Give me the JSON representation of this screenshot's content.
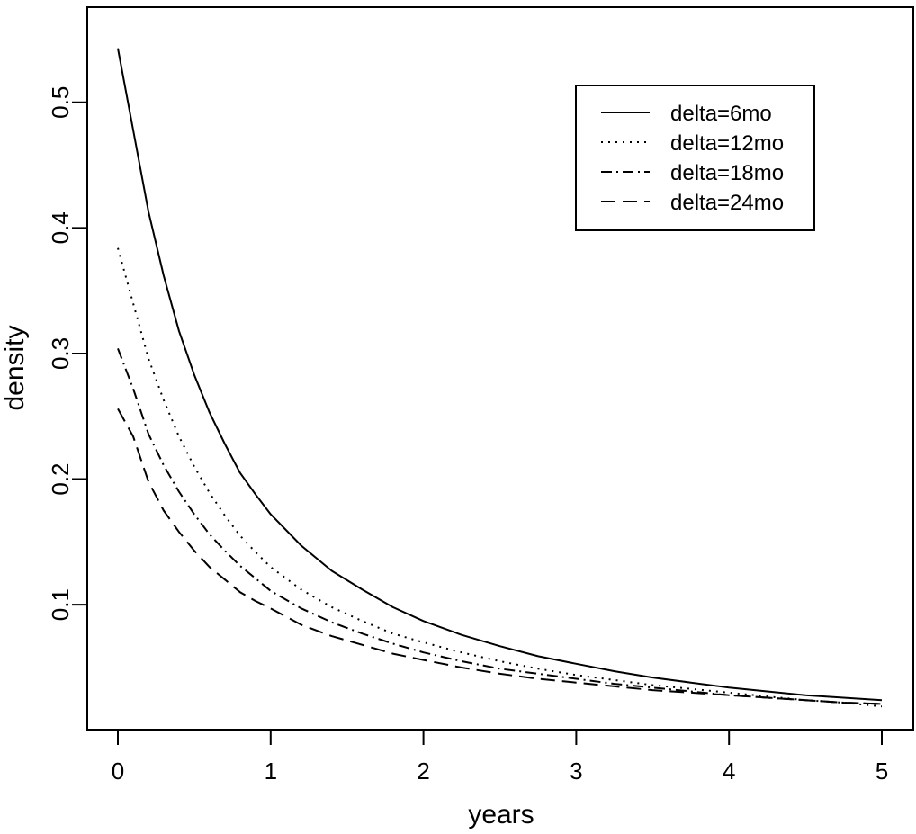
{
  "chart_data": {
    "type": "line",
    "title": "",
    "xlabel": "years",
    "ylabel": "density",
    "xlim": [
      0,
      5
    ],
    "ylim": [
      0.012,
      0.56
    ],
    "x_ticks": [
      0,
      1,
      2,
      3,
      4,
      5
    ],
    "y_ticks": [
      0.1,
      0.2,
      0.3,
      0.4,
      0.5
    ],
    "grid": false,
    "legend_position": "top-right",
    "x": [
      0,
      0.1,
      0.2,
      0.3,
      0.4,
      0.5,
      0.6,
      0.7,
      0.8,
      0.9,
      1.0,
      1.2,
      1.4,
      1.6,
      1.8,
      2.0,
      2.25,
      2.5,
      2.75,
      3.0,
      3.25,
      3.5,
      3.75,
      4.0,
      4.25,
      4.5,
      4.75,
      5.0
    ],
    "series": [
      {
        "name": "delta=6mo",
        "style": "solid",
        "values": [
          0.543,
          0.478,
          0.413,
          0.362,
          0.318,
          0.283,
          0.253,
          0.228,
          0.205,
          0.188,
          0.172,
          0.147,
          0.127,
          0.112,
          0.098,
          0.087,
          0.076,
          0.067,
          0.059,
          0.053,
          0.047,
          0.042,
          0.038,
          0.034,
          0.031,
          0.028,
          0.026,
          0.024
        ]
      },
      {
        "name": "delta=12mo",
        "style": "dotted",
        "values": [
          0.384,
          0.34,
          0.296,
          0.263,
          0.234,
          0.21,
          0.189,
          0.171,
          0.155,
          0.142,
          0.13,
          0.112,
          0.098,
          0.087,
          0.077,
          0.07,
          0.062,
          0.055,
          0.049,
          0.044,
          0.04,
          0.036,
          0.033,
          0.03,
          0.027,
          0.024,
          0.022,
          0.019
        ]
      },
      {
        "name": "delta=18mo",
        "style": "dash-dot",
        "values": [
          0.304,
          0.272,
          0.236,
          0.211,
          0.19,
          0.172,
          0.156,
          0.143,
          0.131,
          0.121,
          0.111,
          0.097,
          0.086,
          0.077,
          0.069,
          0.062,
          0.055,
          0.049,
          0.045,
          0.041,
          0.037,
          0.034,
          0.031,
          0.028,
          0.026,
          0.024,
          0.022,
          0.021
        ]
      },
      {
        "name": "delta=24mo",
        "style": "dashed",
        "values": [
          0.256,
          0.234,
          0.198,
          0.175,
          0.158,
          0.143,
          0.13,
          0.12,
          0.11,
          0.103,
          0.097,
          0.084,
          0.075,
          0.068,
          0.061,
          0.056,
          0.05,
          0.045,
          0.041,
          0.038,
          0.035,
          0.032,
          0.03,
          0.028,
          0.026,
          0.024,
          0.022,
          0.021
        ]
      }
    ]
  }
}
